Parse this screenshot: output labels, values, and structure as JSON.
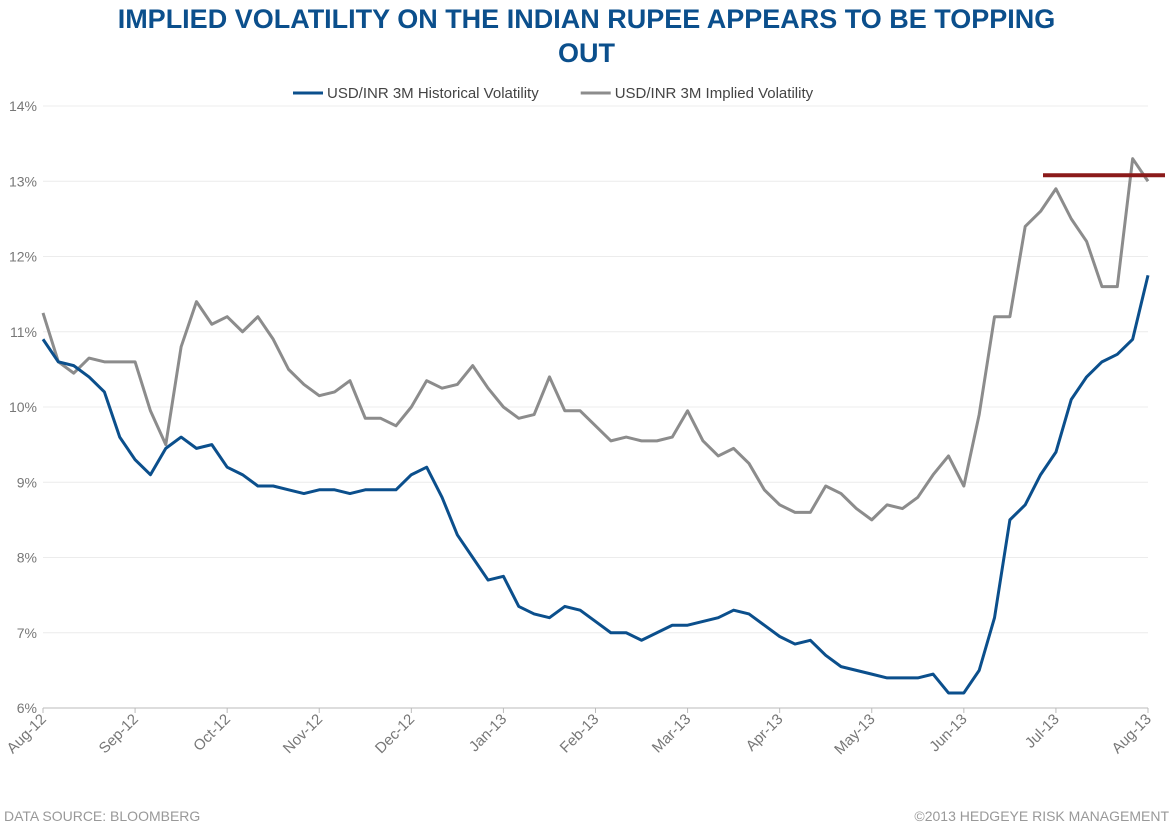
{
  "chart_data": {
    "type": "line",
    "title": "IMPLIED VOLATILITY ON THE INDIAN RUPEE APPEARS TO BE TOPPING OUT",
    "source": "DATA SOURCE:  BLOOMBERG",
    "copyright": "©2013 HEDGEYE RISK MANAGEMENT",
    "categories": [
      "Aug-12",
      null,
      null,
      null,
      null,
      null,
      "Sep-12",
      null,
      null,
      null,
      null,
      null,
      "Oct-12",
      null,
      null,
      null,
      null,
      null,
      "Nov-12",
      null,
      null,
      null,
      null,
      null,
      "Dec-12",
      null,
      null,
      null,
      null,
      null,
      "Jan-13",
      null,
      null,
      null,
      null,
      null,
      "Feb-13",
      null,
      null,
      null,
      null,
      null,
      "Mar-13",
      null,
      null,
      null,
      null,
      null,
      "Apr-13",
      null,
      null,
      null,
      null,
      null,
      "May-13",
      null,
      null,
      null,
      null,
      null,
      "Jun-13",
      null,
      null,
      null,
      null,
      null,
      "Jul-13",
      null,
      null,
      null,
      null,
      null,
      "Aug-13"
    ],
    "series": [
      {
        "name": "USD/INR 3M Historical Volatility",
        "color": "#0b4f8c",
        "values": [
          10.9,
          10.6,
          10.55,
          10.4,
          10.2,
          9.6,
          9.3,
          9.1,
          9.45,
          9.6,
          9.45,
          9.5,
          9.2,
          9.1,
          8.95,
          8.95,
          8.9,
          8.85,
          8.9,
          8.9,
          8.85,
          8.9,
          8.9,
          8.9,
          9.1,
          9.2,
          8.8,
          8.3,
          8.0,
          7.7,
          7.75,
          7.35,
          7.25,
          7.2,
          7.35,
          7.3,
          7.15,
          7.0,
          7.0,
          6.9,
          7.0,
          7.1,
          7.1,
          7.15,
          7.2,
          7.3,
          7.25,
          7.1,
          6.95,
          6.85,
          6.9,
          6.7,
          6.55,
          6.5,
          6.45,
          6.4,
          6.4,
          6.4,
          6.45,
          6.2,
          6.2,
          6.5,
          7.2,
          8.5,
          8.7,
          9.1,
          9.4,
          10.1,
          10.4,
          10.6,
          10.7,
          10.9,
          11.75
        ]
      },
      {
        "name": "USD/INR 3M Implied Volatility",
        "color": "#8c8c8c",
        "values": [
          11.25,
          10.6,
          10.45,
          10.65,
          10.6,
          10.6,
          10.6,
          9.95,
          9.5,
          10.8,
          11.4,
          11.1,
          11.2,
          11.0,
          11.2,
          10.9,
          10.5,
          10.3,
          10.15,
          10.2,
          10.35,
          9.85,
          9.85,
          9.75,
          10.0,
          10.35,
          10.25,
          10.3,
          10.55,
          10.25,
          10.0,
          9.85,
          9.9,
          10.4,
          9.95,
          9.95,
          9.75,
          9.55,
          9.6,
          9.55,
          9.55,
          9.6,
          9.95,
          9.55,
          9.35,
          9.45,
          9.25,
          8.9,
          8.7,
          8.6,
          8.6,
          8.95,
          8.85,
          8.65,
          8.5,
          8.7,
          8.65,
          8.8,
          9.1,
          9.35,
          8.95,
          9.9,
          11.2,
          11.2,
          12.4,
          12.6,
          12.9,
          12.5,
          12.2,
          11.6,
          11.6,
          13.3,
          13.0
        ]
      }
    ],
    "ylim": [
      6,
      14
    ],
    "yticks": [
      {
        "value": 6,
        "label": "6%"
      },
      {
        "value": 7,
        "label": "7%"
      },
      {
        "value": 8,
        "label": "8%"
      },
      {
        "value": 9,
        "label": "9%"
      },
      {
        "value": 10,
        "label": "10%"
      },
      {
        "value": 11,
        "label": "11%"
      },
      {
        "value": 12,
        "label": "12%"
      },
      {
        "value": 13,
        "label": "13%"
      },
      {
        "value": 14,
        "label": "14%"
      }
    ],
    "grid": true,
    "legend": "top",
    "reference_line": {
      "y": 13.08,
      "color": "#8b1a1a"
    }
  }
}
